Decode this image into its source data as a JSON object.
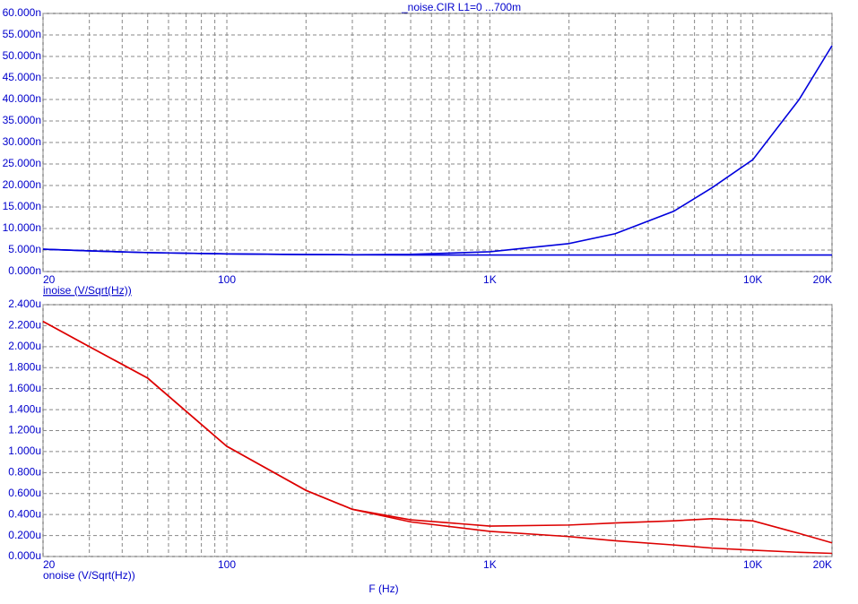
{
  "chart_data": [
    {
      "type": "line",
      "title": "_noise.CIR L1=0 ...700m",
      "ylabel": "inoise (V/Sqrt(Hz))",
      "xscale": "log",
      "grid": true,
      "x": [
        20,
        30,
        50,
        100,
        200,
        300,
        500,
        1000,
        2000,
        3000,
        5000,
        7000,
        10000,
        15000,
        20000
      ],
      "xlim": [
        20,
        20000
      ],
      "xticks": [
        20,
        100,
        {
          "value": 1000,
          "label": "1K"
        },
        {
          "value": 10000,
          "label": "10K"
        },
        {
          "value": 20000,
          "label": "20K"
        }
      ],
      "x_minor_ticks": [
        30,
        40,
        50,
        60,
        70,
        80,
        90,
        200,
        300,
        400,
        500,
        600,
        700,
        800,
        900,
        2000,
        3000,
        4000,
        5000,
        6000,
        7000,
        8000,
        9000
      ],
      "ylim": [
        0,
        60
      ],
      "yticks": [
        {
          "value": 0,
          "label": "0.000n"
        },
        {
          "value": 5,
          "label": "5.000n"
        },
        {
          "value": 10,
          "label": "10.000n"
        },
        {
          "value": 15,
          "label": "15.000n"
        },
        {
          "value": 20,
          "label": "20.000n"
        },
        {
          "value": 25,
          "label": "25.000n"
        },
        {
          "value": 30,
          "label": "30.000n"
        },
        {
          "value": 35,
          "label": "35.000n"
        },
        {
          "value": 40,
          "label": "40.000n"
        },
        {
          "value": 45,
          "label": "45.000n"
        },
        {
          "value": 50,
          "label": "50.000n"
        },
        {
          "value": 55,
          "label": "55.000n"
        },
        {
          "value": 60,
          "label": "60.000n"
        }
      ],
      "series": [
        {
          "color": "#0000dd",
          "values": [
            5.2,
            4.8,
            4.4,
            4.1,
            3.95,
            3.9,
            4.0,
            4.6,
            6.5,
            8.8,
            14,
            19.5,
            26,
            40,
            52.5
          ]
        },
        {
          "color": "#0000dd",
          "values": [
            5.2,
            4.8,
            4.4,
            4.1,
            3.95,
            3.9,
            3.85,
            3.85,
            3.85,
            3.85,
            3.85,
            3.85,
            3.85,
            3.85,
            3.85
          ]
        }
      ]
    },
    {
      "type": "line",
      "ylabel": "onoise (V/Sqrt(Hz))",
      "xlabel": "F (Hz)",
      "xscale": "log",
      "grid": true,
      "x": [
        20,
        30,
        50,
        100,
        200,
        300,
        500,
        1000,
        2000,
        3000,
        5000,
        7000,
        10000,
        15000,
        20000
      ],
      "xlim": [
        20,
        20000
      ],
      "xticks": [
        20,
        100,
        {
          "value": 1000,
          "label": "1K"
        },
        {
          "value": 10000,
          "label": "10K"
        },
        {
          "value": 20000,
          "label": "20K"
        }
      ],
      "x_minor_ticks": [
        30,
        40,
        50,
        60,
        70,
        80,
        90,
        200,
        300,
        400,
        500,
        600,
        700,
        800,
        900,
        2000,
        3000,
        4000,
        5000,
        6000,
        7000,
        8000,
        9000
      ],
      "ylim": [
        0,
        2.4
      ],
      "yticks": [
        {
          "value": 0,
          "label": "0.000u"
        },
        {
          "value": 0.2,
          "label": "0.200u"
        },
        {
          "value": 0.4,
          "label": "0.400u"
        },
        {
          "value": 0.6,
          "label": "0.600u"
        },
        {
          "value": 0.8,
          "label": "0.800u"
        },
        {
          "value": 1.0,
          "label": "1.000u"
        },
        {
          "value": 1.2,
          "label": "1.200u"
        },
        {
          "value": 1.4,
          "label": "1.400u"
        },
        {
          "value": 1.6,
          "label": "1.600u"
        },
        {
          "value": 1.8,
          "label": "1.800u"
        },
        {
          "value": 2.0,
          "label": "2.000u"
        },
        {
          "value": 2.2,
          "label": "2.200u"
        },
        {
          "value": 2.4,
          "label": "2.400u"
        }
      ],
      "series": [
        {
          "color": "#dd0000",
          "values": [
            2.24,
            2.0,
            1.7,
            1.05,
            0.63,
            0.45,
            0.35,
            0.29,
            0.3,
            0.32,
            0.34,
            0.36,
            0.34,
            0.22,
            0.13
          ]
        },
        {
          "color": "#dd0000",
          "values": [
            2.24,
            2.0,
            1.7,
            1.05,
            0.63,
            0.45,
            0.33,
            0.24,
            0.19,
            0.15,
            0.11,
            0.08,
            0.06,
            0.04,
            0.03
          ]
        }
      ]
    }
  ]
}
